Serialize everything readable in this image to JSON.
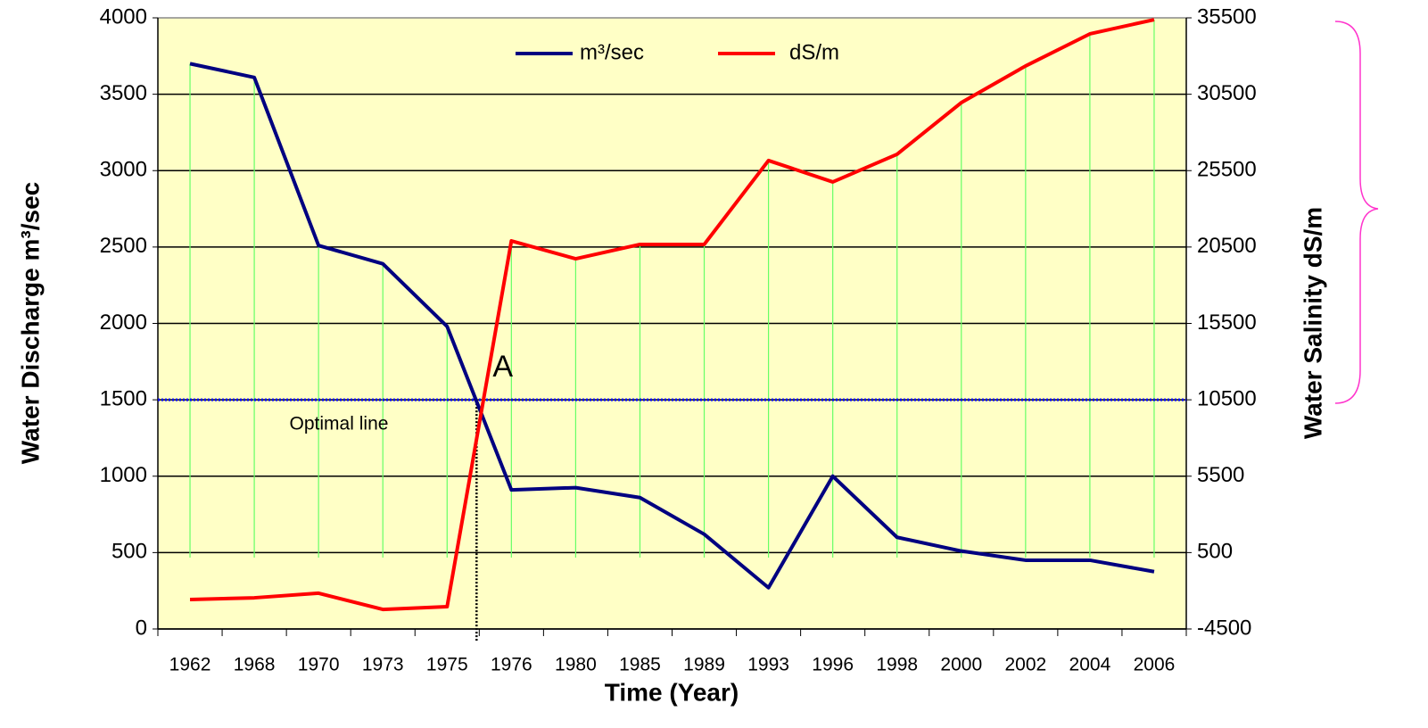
{
  "chart_data": {
    "type": "line",
    "x_label": "Time (Year)",
    "y_label": "Water Discharge m³/sec",
    "y2_label": "Water Salinity dS/m",
    "categories": [
      "1962",
      "1968",
      "1970",
      "1973",
      "1975",
      "1976",
      "1980",
      "1985",
      "1989",
      "1993",
      "1996",
      "1998",
      "2000",
      "2002",
      "2004",
      "2006"
    ],
    "series": [
      {
        "name": "m³/sec",
        "color": "#000080",
        "axis": "y",
        "values": [
          3700,
          3610,
          2510,
          2390,
          1980,
          910,
          925,
          860,
          620,
          270,
          1000,
          600,
          510,
          450,
          450,
          375
        ]
      },
      {
        "name": "dS/m",
        "color": "#ff0000",
        "axis": "y2",
        "values": [
          -2570,
          -2460,
          -2160,
          -3220,
          -3040,
          20900,
          19730,
          20670,
          20670,
          26160,
          24760,
          26570,
          29950,
          32350,
          34450,
          35380
        ]
      }
    ],
    "ylim": [
      0,
      4000
    ],
    "yticks": [
      0,
      500,
      1000,
      1500,
      2000,
      2500,
      3000,
      3500,
      4000
    ],
    "y2lim": [
      -4500,
      35500
    ],
    "y2ticks": [
      -4500,
      500,
      5500,
      10500,
      15500,
      20500,
      25500,
      30500,
      35500
    ],
    "grid": true,
    "legend": "top",
    "optimal_line": {
      "label": "Optimal line",
      "value": 1500,
      "color": "#0000ff"
    },
    "point_label": "A"
  }
}
